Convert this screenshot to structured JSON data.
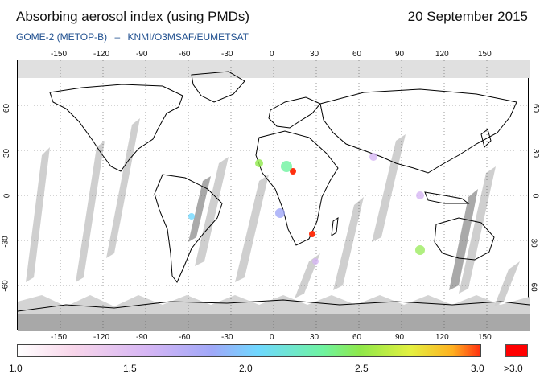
{
  "header": {
    "title": "Absorbing aerosol index (using PMDs)",
    "date": "20 September 2015",
    "instrument": "GOME-2 (METOP-B)",
    "separator": "–",
    "source": "KNMI/O3MSAF/EUMETSAT"
  },
  "axes": {
    "lon_labels": [
      "-150",
      "-120",
      "-90",
      "-60",
      "-30",
      "0",
      "30",
      "60",
      "90",
      "120",
      "150"
    ],
    "lat_labels": [
      "60",
      "30",
      "0",
      "-30",
      "-60"
    ],
    "lon_range": [
      -180,
      180
    ],
    "lat_range": [
      -90,
      90
    ],
    "grid": "dotted"
  },
  "colorbar": {
    "labels": [
      "1.0",
      "1.5",
      "2.0",
      "2.5",
      "3.0"
    ],
    "overflow_label": ">3.0",
    "range": [
      1.0,
      3.0
    ],
    "overflow_color": "#ff0000",
    "colors": [
      "#ffffff",
      "#f8d6ea",
      "#d6b6f4",
      "#a0a8f8",
      "#6fd8ff",
      "#6ff3a0",
      "#8fe84a",
      "#e4f040",
      "#ffb020",
      "#ff3010"
    ]
  },
  "map": {
    "no_data_color": "#c8c8c8",
    "land_outline_color": "#000000"
  }
}
